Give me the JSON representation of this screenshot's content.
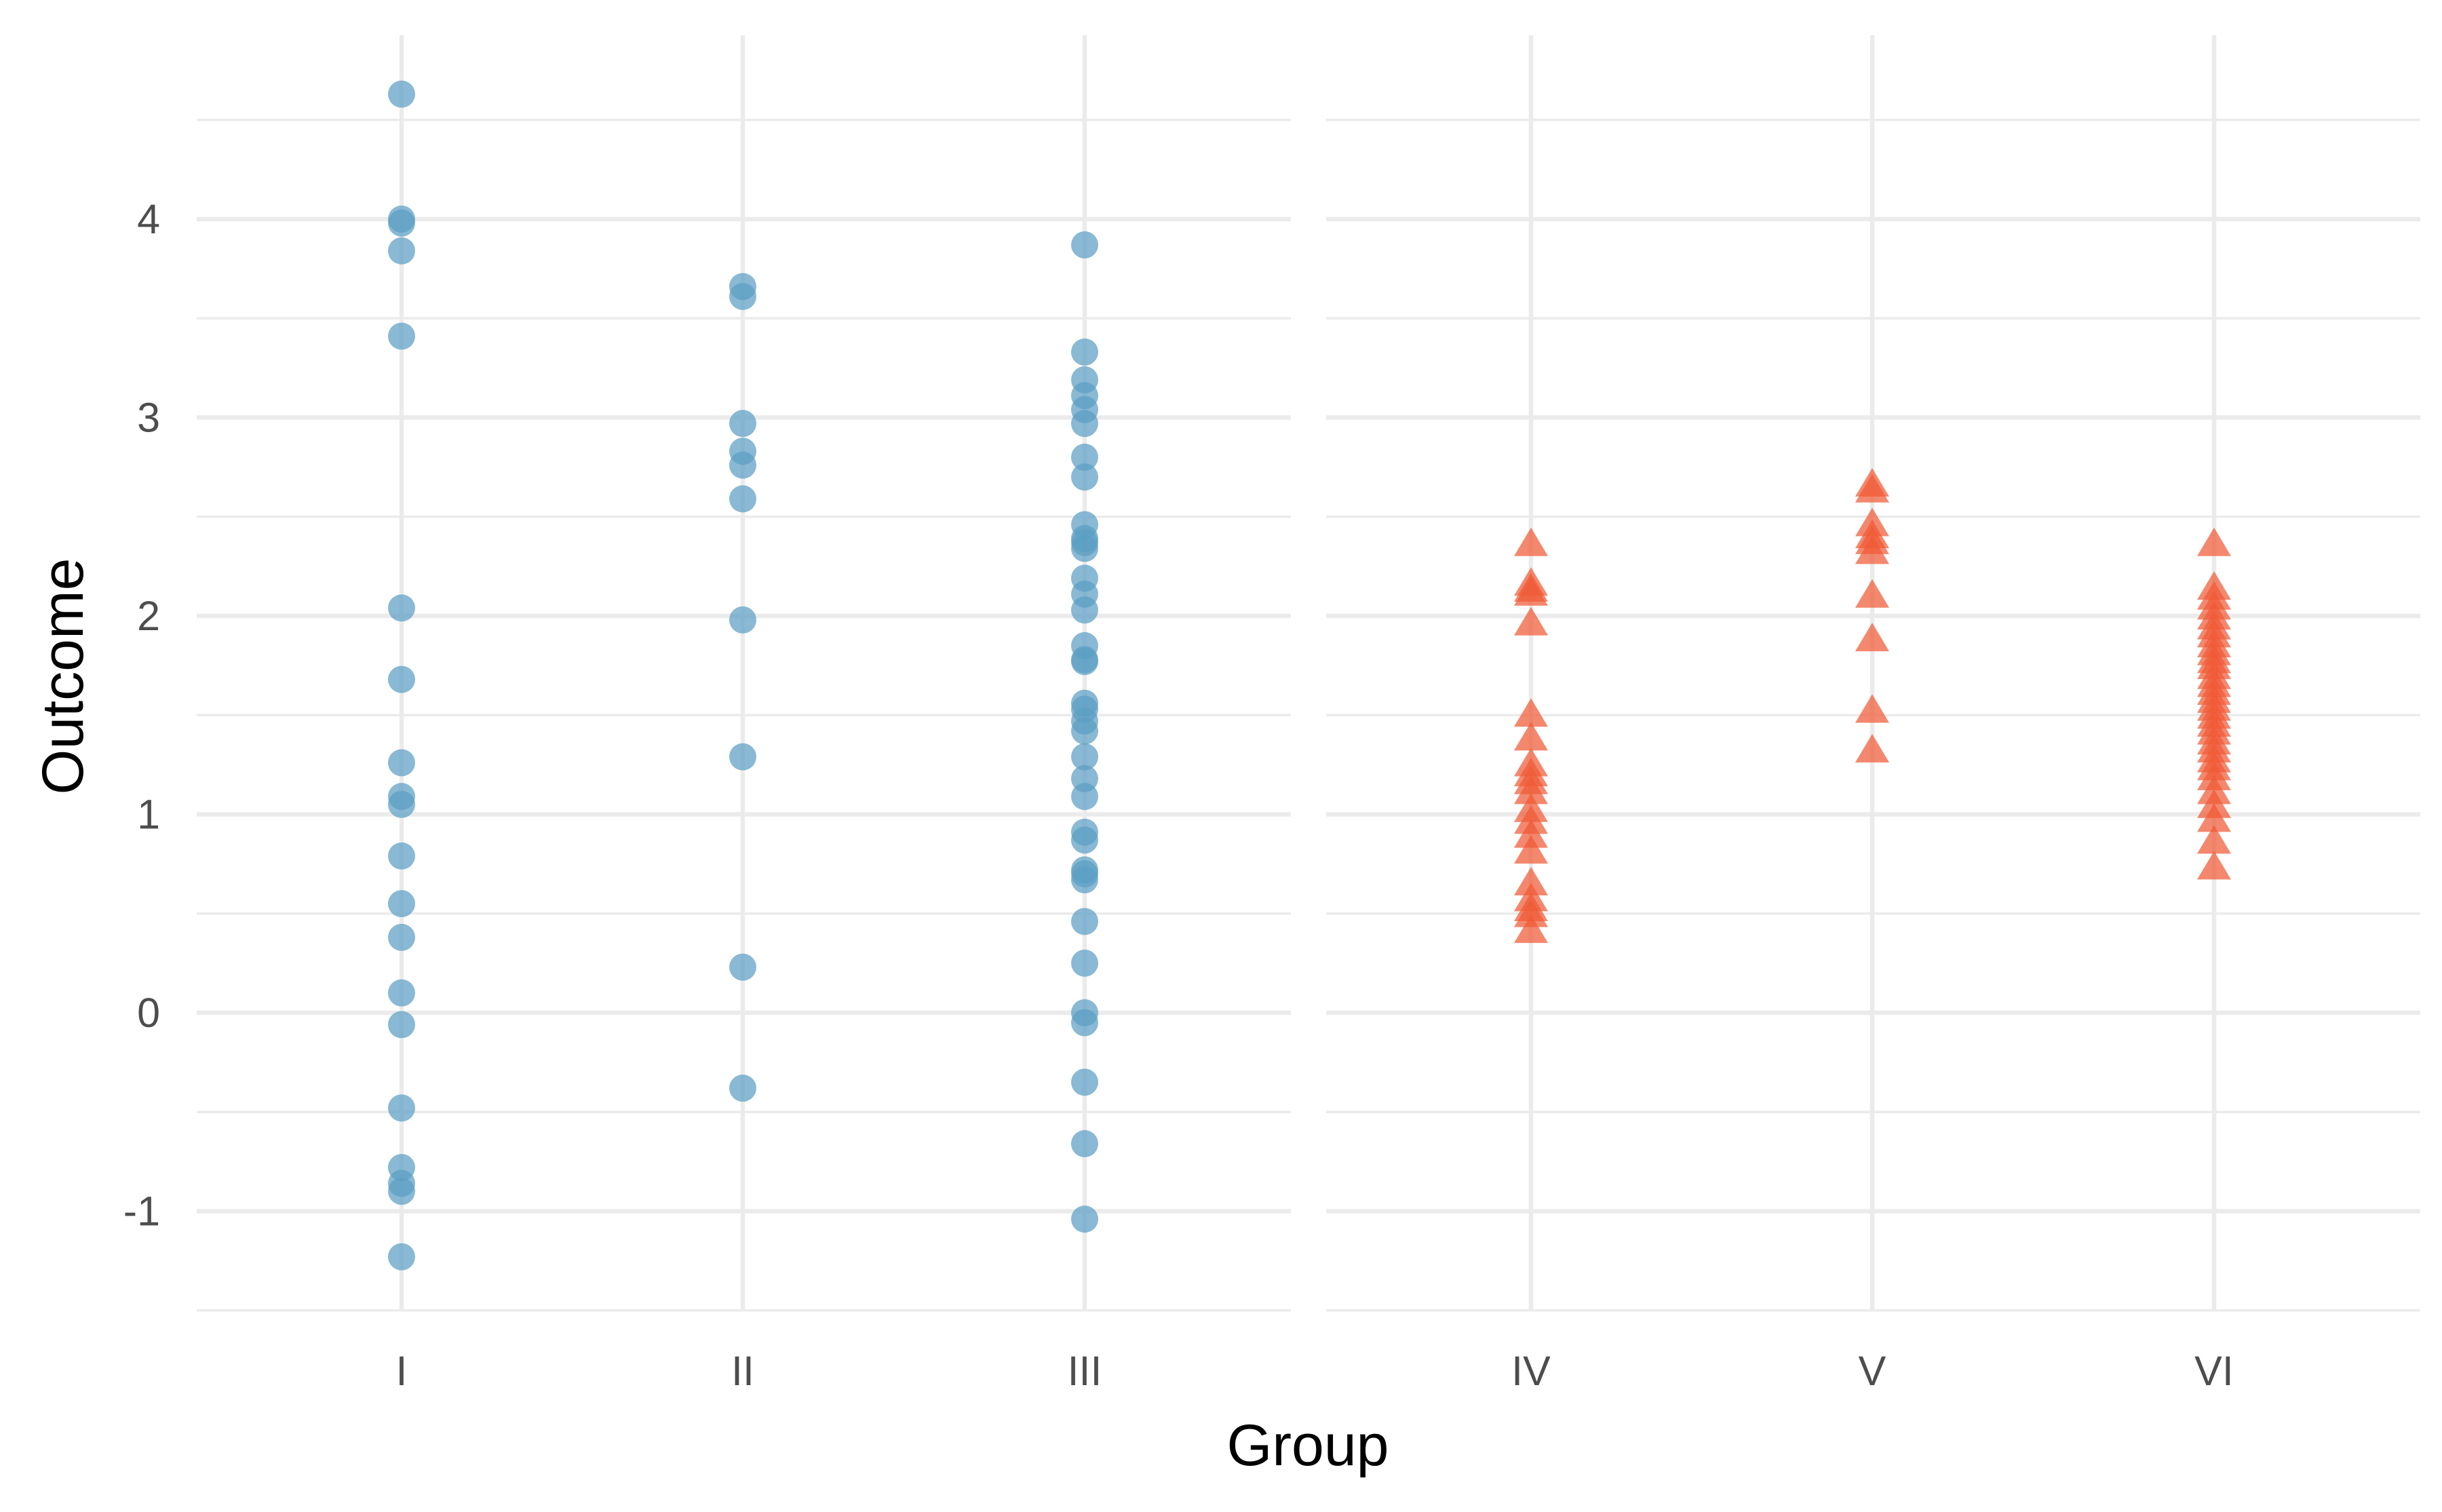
{
  "chart_data": {
    "type": "scatter",
    "title": "",
    "xlabel": "Group",
    "ylabel": "Outcome",
    "ylim": [
      -1.55,
      4.95
    ],
    "y_ticks": [
      -1,
      0,
      1,
      2,
      3,
      4
    ],
    "y_tick_labels": [
      "-1",
      "0",
      "1",
      "2",
      "3",
      "4"
    ],
    "grid": true,
    "colors": {
      "circles": "#5b9ec4",
      "triangles": "#f05a36"
    },
    "panels": [
      {
        "name": "left",
        "marker": "circle",
        "categories": [
          "I",
          "II",
          "III"
        ],
        "series": [
          {
            "name": "I",
            "values": [
              4.63,
              4.0,
              3.98,
              3.84,
              3.41,
              2.04,
              1.68,
              1.26,
              1.09,
              1.05,
              0.79,
              0.55,
              0.38,
              0.1,
              -0.06,
              -0.48,
              -0.78,
              -0.86,
              -0.9,
              -1.23
            ]
          },
          {
            "name": "II",
            "values": [
              3.66,
              3.61,
              2.97,
              2.83,
              2.76,
              2.59,
              1.98,
              1.29,
              0.23,
              -0.38
            ]
          },
          {
            "name": "III",
            "values": [
              3.87,
              3.33,
              3.19,
              3.11,
              3.04,
              2.97,
              2.8,
              2.7,
              2.46,
              2.39,
              2.37,
              2.34,
              2.19,
              2.11,
              2.03,
              1.85,
              1.78,
              1.77,
              1.56,
              1.53,
              1.47,
              1.42,
              1.29,
              1.18,
              1.09,
              0.91,
              0.87,
              0.72,
              0.7,
              0.67,
              0.46,
              0.25,
              0.0,
              -0.05,
              -0.35,
              -0.66,
              -1.04
            ]
          }
        ]
      },
      {
        "name": "right",
        "marker": "triangle",
        "categories": [
          "IV",
          "V",
          "VI"
        ],
        "series": [
          {
            "name": "IV",
            "values": [
              2.37,
              2.17,
              2.14,
              2.12,
              1.97,
              1.51,
              1.39,
              1.26,
              1.21,
              1.17,
              1.12,
              1.03,
              0.97,
              0.9,
              0.82,
              0.66,
              0.58,
              0.53,
              0.5,
              0.42
            ]
          },
          {
            "name": "V",
            "values": [
              2.67,
              2.64,
              2.47,
              2.41,
              2.38,
              2.33,
              2.11,
              1.89,
              1.53,
              1.33
            ]
          },
          {
            "name": "VI",
            "values": [
              2.37,
              2.15,
              2.1,
              2.05,
              2.0,
              1.95,
              1.91,
              1.86,
              1.82,
              1.78,
              1.75,
              1.7,
              1.66,
              1.62,
              1.58,
              1.54,
              1.5,
              1.46,
              1.42,
              1.37,
              1.33,
              1.28,
              1.24,
              1.19,
              1.12,
              1.05,
              0.98,
              0.87,
              0.74
            ]
          }
        ]
      }
    ]
  }
}
